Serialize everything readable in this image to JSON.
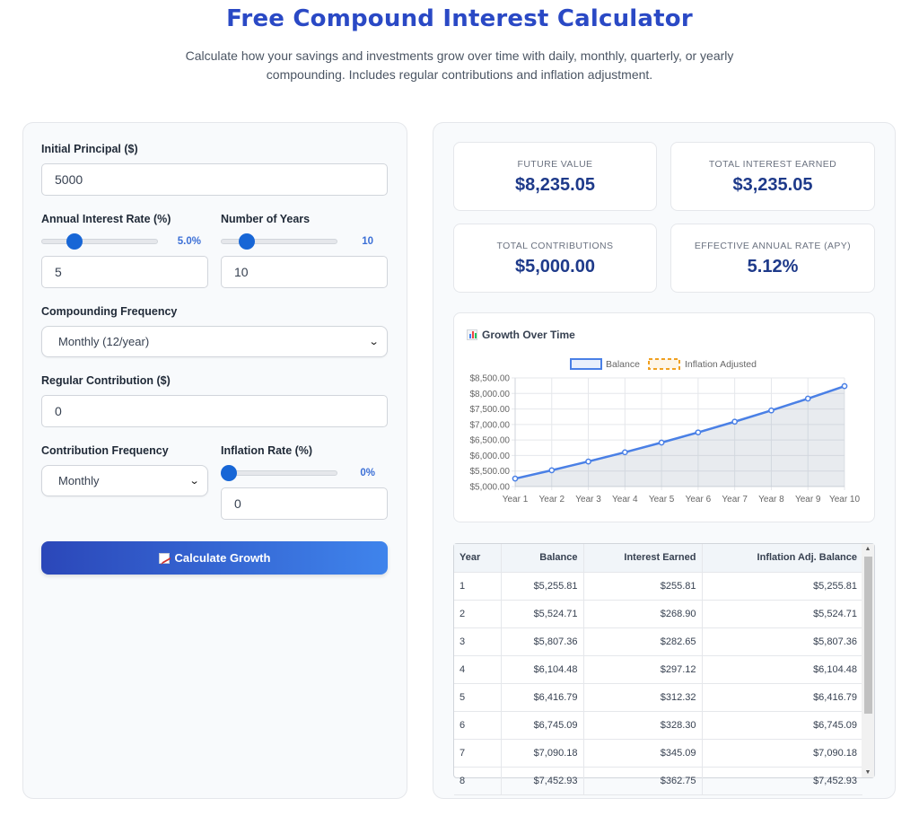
{
  "header": {
    "title": "Free Compound Interest Calculator",
    "subtitle": "Calculate how your savings and investments grow over time with daily, monthly, quarterly, or yearly compounding. Includes regular contributions and inflation adjustment."
  },
  "form": {
    "principal_label": "Initial Principal ($)",
    "principal_value": "5000",
    "rate_label": "Annual Interest Rate (%)",
    "rate_slider_display": "5.0%",
    "rate_slider_level": 0.2,
    "rate_value": "5",
    "years_label": "Number of Years",
    "years_slider_display": "10",
    "years_slider_level": 0.22,
    "years_value": "10",
    "compounding_label": "Compounding Frequency",
    "compounding_value": "Monthly (12/year)",
    "contribution_label": "Regular Contribution ($)",
    "contribution_value": "0",
    "contribution_freq_label": "Contribution Frequency",
    "contribution_freq_value": "Monthly",
    "inflation_label": "Inflation Rate (%)",
    "inflation_slider_display": "0%",
    "inflation_slider_level": 0,
    "inflation_value": "0",
    "calculate_label": "Calculate Growth"
  },
  "stats": {
    "future_value_label": "FUTURE VALUE",
    "future_value": "$8,235.05",
    "interest_label": "TOTAL INTEREST EARNED",
    "interest_value": "$3,235.05",
    "contributions_label": "TOTAL CONTRIBUTIONS",
    "contributions_value": "$5,000.00",
    "apy_label": "EFFECTIVE ANNUAL RATE (APY)",
    "apy_value": "5.12%"
  },
  "chart_heading": "Growth Over Time",
  "colors": {
    "accent": "#2a49c5",
    "balance_line": "#4a80e6",
    "inflation_line": "#f0a020"
  },
  "chart_data": {
    "type": "line",
    "categories": [
      "Year 1",
      "Year 2",
      "Year 3",
      "Year 4",
      "Year 5",
      "Year 6",
      "Year 7",
      "Year 8",
      "Year 9",
      "Year 10"
    ],
    "series": [
      {
        "name": "Balance",
        "values": [
          5255.81,
          5524.71,
          5807.36,
          6104.48,
          6416.79,
          6745.09,
          7090.18,
          7452.93,
          7834.23,
          8235.05
        ]
      },
      {
        "name": "Inflation Adjusted",
        "values": [
          5255.81,
          5524.71,
          5807.36,
          6104.48,
          6416.79,
          6745.09,
          7090.18,
          7452.93,
          7834.23,
          8235.05
        ]
      }
    ],
    "ylim": [
      5000,
      8500
    ],
    "yticks": [
      "$8,500.00",
      "$8,000.00",
      "$7,500.00",
      "$7,000.00",
      "$6,500.00",
      "$6,000.00",
      "$5,500.00",
      "$5,000.00"
    ],
    "ytick_values": [
      8500,
      8000,
      7500,
      7000,
      6500,
      6000,
      5500,
      5000
    ],
    "grid": true,
    "legend": "top-center"
  },
  "table": {
    "headers": [
      "Year",
      "Balance",
      "Interest Earned",
      "Inflation Adj. Balance"
    ],
    "rows": [
      [
        "1",
        "$5,255.81",
        "$255.81",
        "$5,255.81"
      ],
      [
        "2",
        "$5,524.71",
        "$268.90",
        "$5,524.71"
      ],
      [
        "3",
        "$5,807.36",
        "$282.65",
        "$5,807.36"
      ],
      [
        "4",
        "$6,104.48",
        "$297.12",
        "$6,104.48"
      ],
      [
        "5",
        "$6,416.79",
        "$312.32",
        "$6,416.79"
      ],
      [
        "6",
        "$6,745.09",
        "$328.30",
        "$6,745.09"
      ],
      [
        "7",
        "$7,090.18",
        "$345.09",
        "$7,090.18"
      ],
      [
        "8",
        "$7,452.93",
        "$362.75",
        "$7,452.93"
      ]
    ]
  }
}
